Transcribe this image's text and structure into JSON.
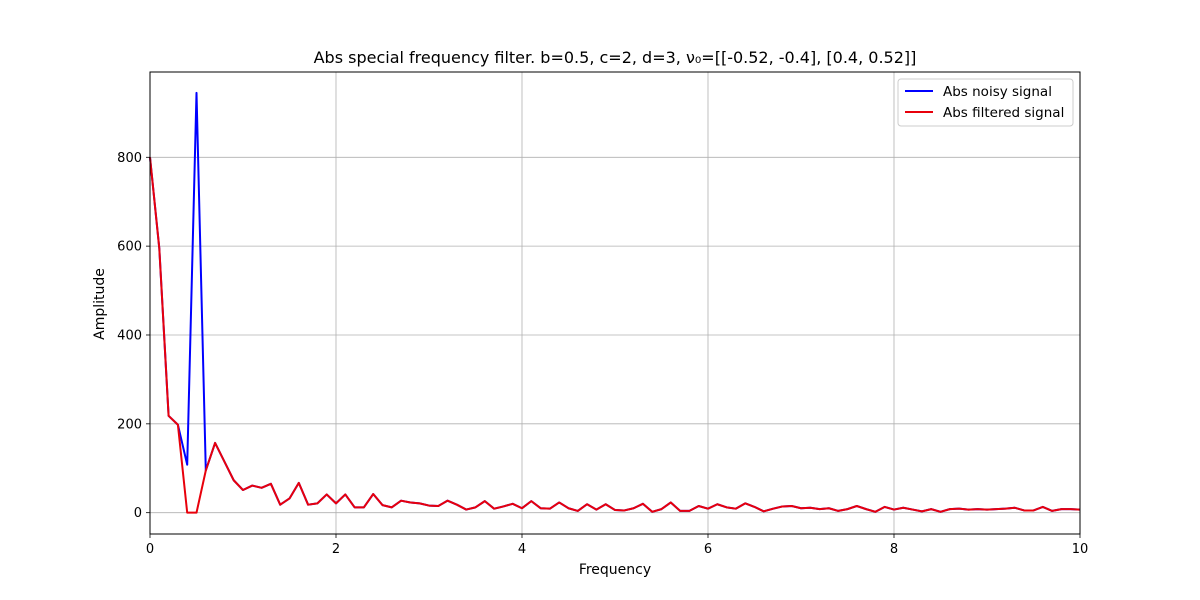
{
  "chart_data": {
    "type": "line",
    "title": "Abs special frequency filter. b=0.5, c=2, d=3, ν₀=[[-0.52, -0.4], [0.4, 0.52]]",
    "xlabel": "Frequency",
    "ylabel": "Amplitude",
    "xlim": [
      0,
      10
    ],
    "ylim": [
      -48,
      992
    ],
    "xticks": [
      0,
      2,
      4,
      6,
      8,
      10
    ],
    "yticks": [
      0,
      200,
      400,
      600,
      800
    ],
    "grid": true,
    "legend_position": "top-right",
    "x": [
      0,
      0.1,
      0.2,
      0.3,
      0.4,
      0.5,
      0.6,
      0.7,
      0.8,
      0.9,
      1.0,
      1.1,
      1.2,
      1.3,
      1.4,
      1.5,
      1.6,
      1.7,
      1.8,
      1.9,
      2.0,
      2.1,
      2.2,
      2.3,
      2.4,
      2.5,
      2.6,
      2.7,
      2.8,
      2.9,
      3.0,
      3.1,
      3.2,
      3.3,
      3.4,
      3.5,
      3.6,
      3.7,
      3.8,
      3.9,
      4.0,
      4.1,
      4.2,
      4.3,
      4.4,
      4.5,
      4.6,
      4.7,
      4.8,
      4.9,
      5.0,
      5.1,
      5.2,
      5.3,
      5.4,
      5.5,
      5.6,
      5.7,
      5.8,
      5.9,
      6.0,
      6.1,
      6.2,
      6.3,
      6.4,
      6.5,
      6.6,
      6.7,
      6.8,
      6.9,
      7.0,
      7.1,
      7.2,
      7.3,
      7.4,
      7.5,
      7.6,
      7.7,
      7.8,
      7.9,
      8.0,
      8.1,
      8.2,
      8.3,
      8.4,
      8.5,
      8.6,
      8.7,
      8.8,
      8.9,
      9.0,
      9.1,
      9.2,
      9.3,
      9.4,
      9.5,
      9.6,
      9.7,
      9.8,
      9.9,
      10.0
    ],
    "series": [
      {
        "name": "Abs noisy signal",
        "color": "#0000ff",
        "values": [
          800,
          595,
          218,
          198,
          108,
          945,
          95,
          157,
          115,
          73,
          51,
          61,
          56,
          65,
          18,
          32,
          67,
          18,
          21,
          41,
          21,
          41,
          12,
          12,
          42,
          17,
          12,
          27,
          23,
          21,
          16,
          15,
          27,
          18,
          7,
          12,
          26,
          9,
          14,
          20,
          10,
          26,
          10,
          9,
          23,
          10,
          4,
          19,
          7,
          19,
          6,
          5,
          10,
          20,
          2,
          8,
          23,
          4,
          4,
          15,
          9,
          19,
          12,
          9,
          21,
          13,
          3,
          9,
          14,
          15,
          10,
          11,
          8,
          10,
          4,
          8,
          15,
          8,
          2,
          13,
          7,
          11,
          7,
          3,
          8,
          2,
          8,
          9,
          7,
          8,
          7,
          8,
          9,
          11,
          5,
          5,
          13,
          4,
          8,
          8,
          7
        ]
      },
      {
        "name": "Abs filtered signal",
        "color": "#e8000b",
        "values": [
          800,
          595,
          218,
          198,
          0,
          0,
          95,
          157,
          115,
          73,
          51,
          61,
          56,
          65,
          18,
          32,
          67,
          18,
          21,
          41,
          21,
          41,
          12,
          12,
          42,
          17,
          12,
          27,
          23,
          21,
          16,
          15,
          27,
          18,
          7,
          12,
          26,
          9,
          14,
          20,
          10,
          26,
          10,
          9,
          23,
          10,
          4,
          19,
          7,
          19,
          6,
          5,
          10,
          20,
          2,
          8,
          23,
          4,
          4,
          15,
          9,
          19,
          12,
          9,
          21,
          13,
          3,
          9,
          14,
          15,
          10,
          11,
          8,
          10,
          4,
          8,
          15,
          8,
          2,
          13,
          7,
          11,
          7,
          3,
          8,
          2,
          8,
          9,
          7,
          8,
          7,
          8,
          9,
          11,
          5,
          5,
          13,
          4,
          8,
          8,
          7
        ]
      }
    ]
  }
}
